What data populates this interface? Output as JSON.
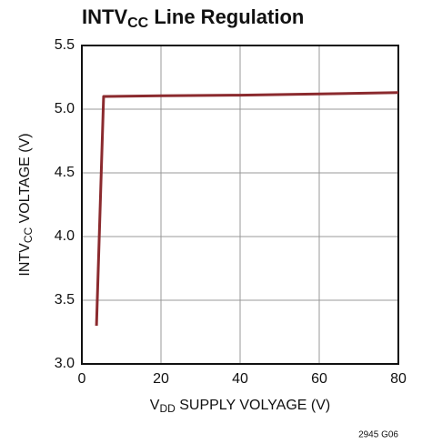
{
  "chart_data": {
    "type": "line",
    "title": [
      "INTV",
      "CC",
      " Line Regulation"
    ],
    "y_label": [
      "INTV",
      "CC",
      " VOLTAGE (V)"
    ],
    "x_label": [
      "V",
      "DD",
      " SUPPLY VOLYAGE (V)"
    ],
    "annotation": "2945 G06",
    "x": [
      3.7,
      5.5,
      6,
      20,
      40,
      60,
      80
    ],
    "series": [
      {
        "name": "INTVCC",
        "color": "#8b2a2e",
        "values": [
          3.3,
          5.1,
          5.1,
          5.105,
          5.11,
          5.12,
          5.13
        ]
      }
    ],
    "xlim": [
      0,
      80
    ],
    "xticks": [
      0,
      20,
      40,
      60,
      80
    ],
    "ylim": [
      3,
      5.5
    ],
    "yticks": [
      {
        "value": 3,
        "label": "3.0"
      },
      3.5,
      {
        "value": 4,
        "label": "4.0"
      },
      4.5,
      {
        "value": 5,
        "label": "5.0"
      },
      5.5
    ],
    "grid": true
  }
}
